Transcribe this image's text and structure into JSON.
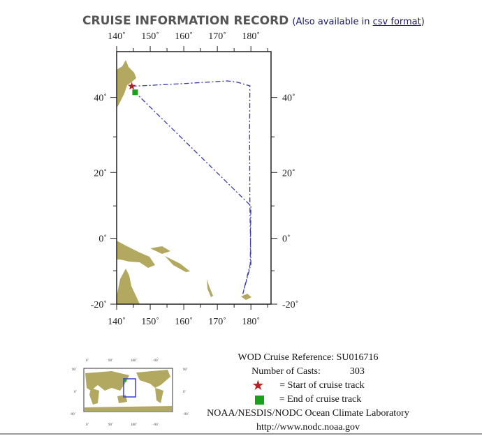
{
  "header": {
    "title": "CRUISE INFORMATION RECORD",
    "note_prefix": "(Also available in ",
    "link": "csv format",
    "note_suffix": ")"
  },
  "chart_data": {
    "type": "map",
    "projection": "mercator",
    "xlim": [
      140,
      186
    ],
    "ylim": [
      -20,
      50
    ],
    "x_ticks": [
      "140˚",
      "150˚",
      "160˚",
      "170˚",
      "180˚"
    ],
    "x_tick_values": [
      140,
      150,
      160,
      170,
      180
    ],
    "y_ticks": [
      "40˚",
      "20˚",
      "0˚",
      "-20˚"
    ],
    "y_tick_values": [
      40,
      20,
      0,
      -20
    ],
    "land_color": "#b3a860",
    "track_color": "#3a3aa8",
    "track": [
      [
        144.5,
        42.6
      ],
      [
        160,
        43.2
      ],
      [
        173,
        43.8
      ],
      [
        176,
        43.5
      ],
      [
        179.7,
        42.7
      ],
      [
        179.6,
        30
      ],
      [
        179.7,
        10
      ],
      [
        180,
        -8
      ],
      [
        177.6,
        -17
      ],
      [
        179.8,
        -8
      ],
      [
        180,
        10
      ],
      [
        145.5,
        41.2
      ]
    ],
    "start": {
      "lon": 144.5,
      "lat": 42.6,
      "color": "#b22222"
    },
    "end": {
      "lon": 145.5,
      "lat": 41.2,
      "color": "#1aa01a"
    }
  },
  "inset": {
    "x_ticks": [
      "0˚",
      "90˚",
      "180˚",
      "-90˚"
    ],
    "y_ticks": [
      "90˚",
      "0˚",
      "-90˚"
    ]
  },
  "legend": {
    "reference": "WOD Cruise Reference: SU016716",
    "casts_label": "Number of Casts:",
    "casts_value": "303",
    "start_label": "= Start of cruise track",
    "end_label": "= End of cruise track",
    "org": "NOAA/NESDIS/NODC Ocean Climate Laboratory",
    "url": "http://www.nodc.noaa.gov"
  }
}
